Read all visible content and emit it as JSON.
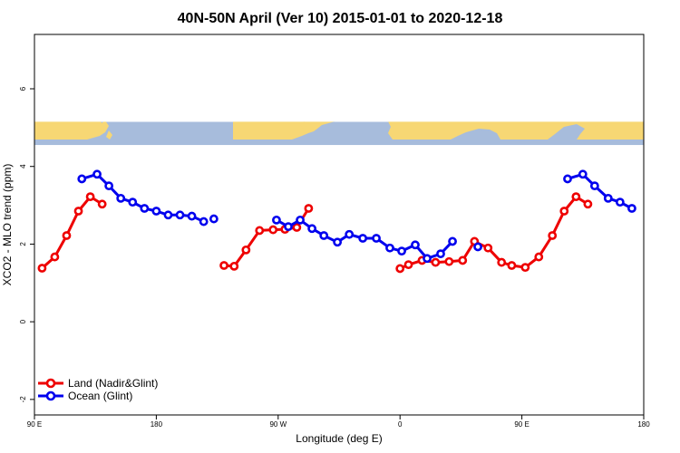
{
  "chart_data": {
    "type": "line",
    "title": "40N-50N April (Ver 10)   2015-01-01 to 2020-12-18",
    "xlabel": "Longitude (deg E)",
    "ylabel": "XCO2 - MLO trend (ppm)",
    "xlim": [
      90,
      450
    ],
    "ylim": [
      -2.4,
      7.4
    ],
    "x_ticks": [
      {
        "value": 90,
        "label": "90 E"
      },
      {
        "value": 162,
        "label": "180"
      },
      {
        "value": 234,
        "label": "90 W"
      },
      {
        "value": 306,
        "label": "0"
      },
      {
        "value": 378,
        "label": "90 E"
      },
      {
        "value": 450,
        "label": "180"
      }
    ],
    "y_ticks": [
      {
        "value": -2,
        "label": "-2"
      },
      {
        "value": 0,
        "label": "0"
      },
      {
        "value": 2,
        "label": "2"
      },
      {
        "value": 4,
        "label": "4"
      },
      {
        "value": 6,
        "label": "6"
      }
    ],
    "grid": false,
    "legend_position": "bottom-left",
    "map_strip": {
      "y_range": [
        4.55,
        5.15
      ],
      "ocean_color": "#a7bcdc",
      "land_color": "#f7d774"
    },
    "series": [
      {
        "name": "Land (Nadir&Glint)",
        "color": "#ee0000",
        "segments": [
          [
            [
              94.5,
              1.38
            ],
            [
              102,
              1.67
            ],
            [
              109,
              2.22
            ],
            [
              116,
              2.85
            ],
            [
              123,
              3.22
            ],
            [
              130,
              3.03
            ]
          ],
          [
            [
              202,
              1.45
            ],
            [
              208,
              1.43
            ],
            [
              215,
              1.85
            ],
            [
              223,
              2.35
            ],
            [
              231,
              2.37
            ],
            [
              238,
              2.38
            ],
            [
              245,
              2.43
            ],
            [
              252,
              2.92
            ]
          ],
          [
            [
              306,
              1.37
            ],
            [
              311,
              1.47
            ],
            [
              319,
              1.58
            ],
            [
              327,
              1.53
            ],
            [
              335,
              1.55
            ],
            [
              343,
              1.58
            ],
            [
              350,
              2.07
            ],
            [
              358,
              1.9
            ],
            [
              366,
              1.53
            ],
            [
              372,
              1.45
            ],
            [
              380,
              1.4
            ],
            [
              388,
              1.67
            ],
            [
              396,
              2.22
            ],
            [
              403,
              2.85
            ],
            [
              410,
              3.22
            ],
            [
              417,
              3.03
            ]
          ]
        ]
      },
      {
        "name": "Ocean (Glint)",
        "color": "#0000ee",
        "segments": [
          [
            [
              118,
              3.68
            ],
            [
              127,
              3.8
            ],
            [
              134,
              3.5
            ],
            [
              141,
              3.18
            ],
            [
              148,
              3.08
            ],
            [
              155,
              2.92
            ],
            [
              162,
              2.85
            ],
            [
              169,
              2.75
            ],
            [
              176,
              2.75
            ],
            [
              183,
              2.72
            ],
            [
              190,
              2.58
            ]
          ],
          [
            [
              196,
              2.65
            ]
          ],
          [
            [
              233,
              2.62
            ],
            [
              240,
              2.45
            ],
            [
              247,
              2.62
            ],
            [
              254,
              2.4
            ],
            [
              261,
              2.22
            ],
            [
              269,
              2.05
            ],
            [
              276,
              2.25
            ],
            [
              284,
              2.15
            ],
            [
              292,
              2.15
            ],
            [
              300,
              1.9
            ],
            [
              307,
              1.82
            ],
            [
              315,
              1.98
            ],
            [
              322,
              1.63
            ],
            [
              330,
              1.75
            ],
            [
              337,
              2.07
            ]
          ],
          [
            [
              352,
              1.93
            ]
          ],
          [
            [
              405,
              3.68
            ],
            [
              414,
              3.8
            ],
            [
              421,
              3.5
            ],
            [
              429,
              3.18
            ],
            [
              436,
              3.08
            ],
            [
              443,
              2.92
            ]
          ]
        ]
      }
    ]
  }
}
